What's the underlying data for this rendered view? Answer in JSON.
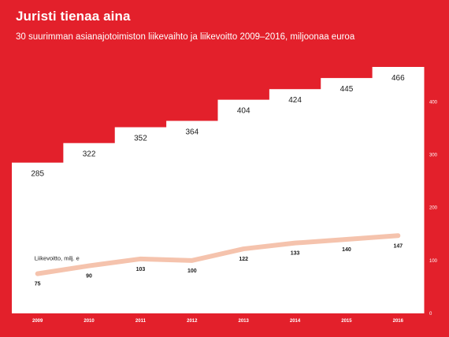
{
  "header": {
    "title": "Juristi tienaa aina",
    "subtitle": "30 suurimman asianajotoimiston liikevaihto ja liikevoitto 2009–2016, miljoonaa euroa"
  },
  "colors": {
    "background": "#e3202b",
    "bars": "#ffffff",
    "profit_line": "#f5c3ad",
    "text_dark": "#1a1a1a",
    "axis_labels": "#ffffff"
  },
  "chart_data": {
    "type": "bar",
    "title": "Juristi tienaa aina",
    "subtitle": "30 suurimman asianajotoimiston liikevaihto ja liikevoitto 2009–2016, miljoonaa euroa",
    "categories": [
      "2009",
      "2010",
      "2011",
      "2012",
      "2013",
      "2014",
      "2015",
      "2016"
    ],
    "ylim": [
      0,
      466
    ],
    "yticks": [
      0,
      100,
      200,
      300,
      400
    ],
    "grid": false,
    "series": [
      {
        "values": [
          285,
          322,
          352,
          364,
          404,
          424,
          445,
          466
        ],
        "kind": "step-bar"
      },
      {
        "name": "Liikevoitto, milj. e",
        "values": [
          75,
          90,
          103,
          100,
          122,
          133,
          140,
          147
        ],
        "kind": "line"
      }
    ]
  }
}
